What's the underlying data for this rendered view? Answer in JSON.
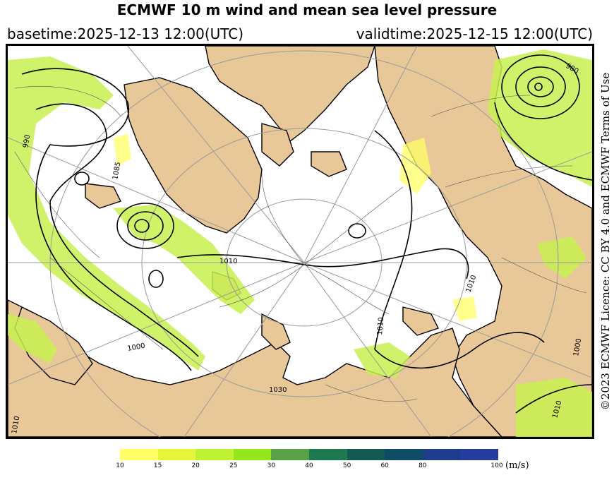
{
  "title": "ECMWF 10 m wind and mean sea level pressure",
  "basetime": "basetime:2025-12-13 12:00(UTC)",
  "validtime": "validtime:2025-12-15 12:00(UTC)",
  "licence": "©2023 ECMWF Licence: CC BY 4.0 and ECMWF Terms of Use",
  "colors": {
    "land": "#e8c898",
    "sea": "#ffffff",
    "isobar": "#000000",
    "graticule": "#9a9a9a"
  },
  "isobar_labels": [
    "990",
    "1085",
    "1010",
    "1000",
    "1010",
    "1030",
    "1010",
    "980",
    "1010",
    "1010",
    "1000"
  ],
  "colorbar": {
    "labels": [
      "10",
      "15",
      "20",
      "25",
      "30",
      "40",
      "50",
      "60",
      "80",
      "100"
    ],
    "colors": [
      "#ffff66",
      "#e6f53c",
      "#bef232",
      "#96e61e",
      "#5aa046",
      "#1e7850",
      "#145a50",
      "#0f4b64",
      "#1e3c8c",
      "#283ca0"
    ],
    "unit": "(m/s)"
  }
}
